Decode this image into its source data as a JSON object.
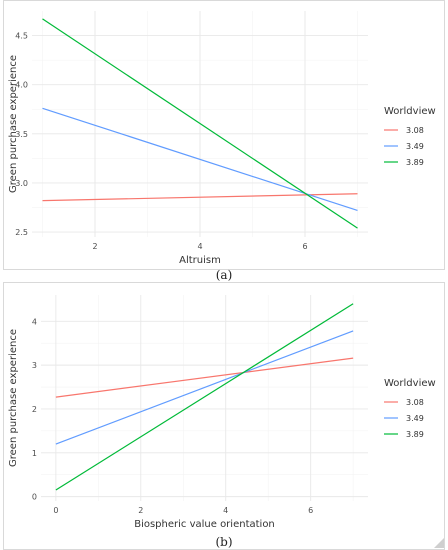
{
  "chart_data": [
    {
      "type": "line",
      "panel_caption": "(a)",
      "xlabel": "Altruism",
      "ylabel": "Green purchase experience",
      "xlim": [
        0.8,
        7.2
      ],
      "ylim": [
        2.45,
        4.75
      ],
      "xticks": [
        2,
        4,
        6
      ],
      "yticks": [
        2.5,
        3.0,
        3.5,
        4.0,
        4.5
      ],
      "ytick_labels": [
        "2.5",
        "3.0",
        "3.5",
        "4.0",
        "4.5"
      ],
      "grid": true,
      "legend_title": "Worldview",
      "legend_position": "right",
      "series": [
        {
          "name": "3.08",
          "color": "#F8766D",
          "x": [
            1,
            7
          ],
          "y": [
            2.82,
            2.89
          ]
        },
        {
          "name": "3.49",
          "color": "#619CFF",
          "x": [
            1,
            7
          ],
          "y": [
            3.76,
            2.72
          ]
        },
        {
          "name": "3.89",
          "color": "#00BA38",
          "x": [
            1,
            7
          ],
          "y": [
            4.67,
            2.54
          ]
        }
      ]
    },
    {
      "type": "line",
      "panel_caption": "(b)",
      "xlabel": "Biospheric value orientation",
      "ylabel": "Green purchase experience",
      "xlim": [
        -0.35,
        7.35
      ],
      "ylim": [
        -0.1,
        4.6
      ],
      "xticks": [
        0,
        2,
        4,
        6
      ],
      "yticks": [
        0,
        1,
        2,
        3,
        4
      ],
      "ytick_labels": [
        "0",
        "1",
        "2",
        "3",
        "4"
      ],
      "grid": true,
      "legend_title": "Worldview",
      "legend_position": "right",
      "series": [
        {
          "name": "3.08",
          "color": "#F8766D",
          "x": [
            0,
            7
          ],
          "y": [
            2.27,
            3.16
          ]
        },
        {
          "name": "3.49",
          "color": "#619CFF",
          "x": [
            0,
            7
          ],
          "y": [
            1.2,
            3.78
          ]
        },
        {
          "name": "3.89",
          "color": "#00BA38",
          "x": [
            0,
            7
          ],
          "y": [
            0.15,
            4.4
          ]
        }
      ]
    }
  ]
}
